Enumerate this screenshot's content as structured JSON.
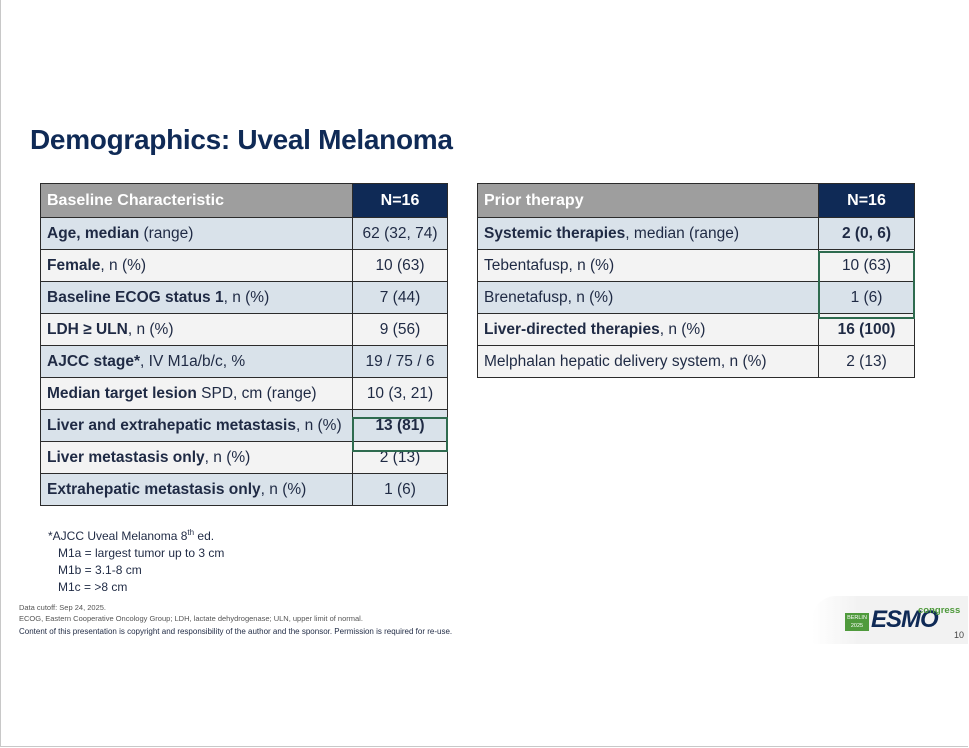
{
  "title": "Demographics: Uveal Melanoma",
  "left_table": {
    "header": {
      "label": "Baseline Characteristic",
      "n": "N=16"
    },
    "rows": [
      {
        "bold": "Age, median",
        "rest": " (range)",
        "value": "62 (32, 74)"
      },
      {
        "bold": "Female",
        "rest": ", n (%)",
        "value": "10 (63)"
      },
      {
        "bold": "Baseline ECOG status 1",
        "rest": ", n (%)",
        "value": "7 (44)"
      },
      {
        "bold": "LDH ≥ ULN",
        "rest": ", n (%)",
        "value": "9 (56)"
      },
      {
        "bold": "AJCC stage*",
        "rest": ", IV M1a/b/c, %",
        "value": "19 / 75 / 6"
      },
      {
        "bold": "Median target lesion",
        "rest": " SPD, cm (range)",
        "value": "10 (3, 21)"
      },
      {
        "bold": "Liver and extrahepatic metastasis",
        "rest": ", n (%)",
        "value": "13 (81)"
      },
      {
        "bold": "Liver metastasis only",
        "rest": ", n (%)",
        "value": "2 (13)"
      },
      {
        "bold": "Extrahepatic metastasis only",
        "rest": ", n (%)",
        "value": "1 (6)"
      }
    ]
  },
  "right_table": {
    "header": {
      "label": "Prior therapy",
      "n": "N=16"
    },
    "rows": [
      {
        "bold": "Systemic therapies",
        "rest": ", median (range)",
        "value": "2 (0, 6)"
      },
      {
        "bold": "",
        "rest": "Tebentafusp, n (%)",
        "value": "10 (63)"
      },
      {
        "bold": "",
        "rest": "Brenetafusp, n (%)",
        "value": "1 (6)"
      },
      {
        "bold": "Liver-directed therapies",
        "rest": ", n (%)",
        "value": "16 (100)"
      },
      {
        "bold": "",
        "rest": "Melphalan hepatic delivery system, n (%)",
        "value": "2 (13)"
      }
    ]
  },
  "footnote": {
    "line1_pre": "*AJCC Uveal Melanoma 8",
    "line1_sup": "th",
    "line1_post": " ed.",
    "m1a": "M1a = largest tumor up to 3 cm",
    "m1b": "M1b = 3.1-8 cm",
    "m1c": "M1c = >8 cm"
  },
  "notes": {
    "cutoff": "Data cutoff: Sep 24, 2025.",
    "abbrev": "ECOG, Eastern Cooperative Oncology Group; LDH, lactate dehydrogenase; ULN, upper limit of normal.",
    "copyright": "Content of this presentation is copyright and responsibility of the author and the sponsor. Permission is required for re-use."
  },
  "logo": {
    "city": "BERLIN 2025",
    "brand": "ESMO",
    "congress": "congress"
  },
  "page_number": "10",
  "colors": {
    "navy": "#0f2a56",
    "header_gray": "#9e9e9e",
    "row_blue": "#d9e2ea",
    "highlight_green": "#2e6b4f",
    "esmo_green": "#4f9a3c"
  }
}
